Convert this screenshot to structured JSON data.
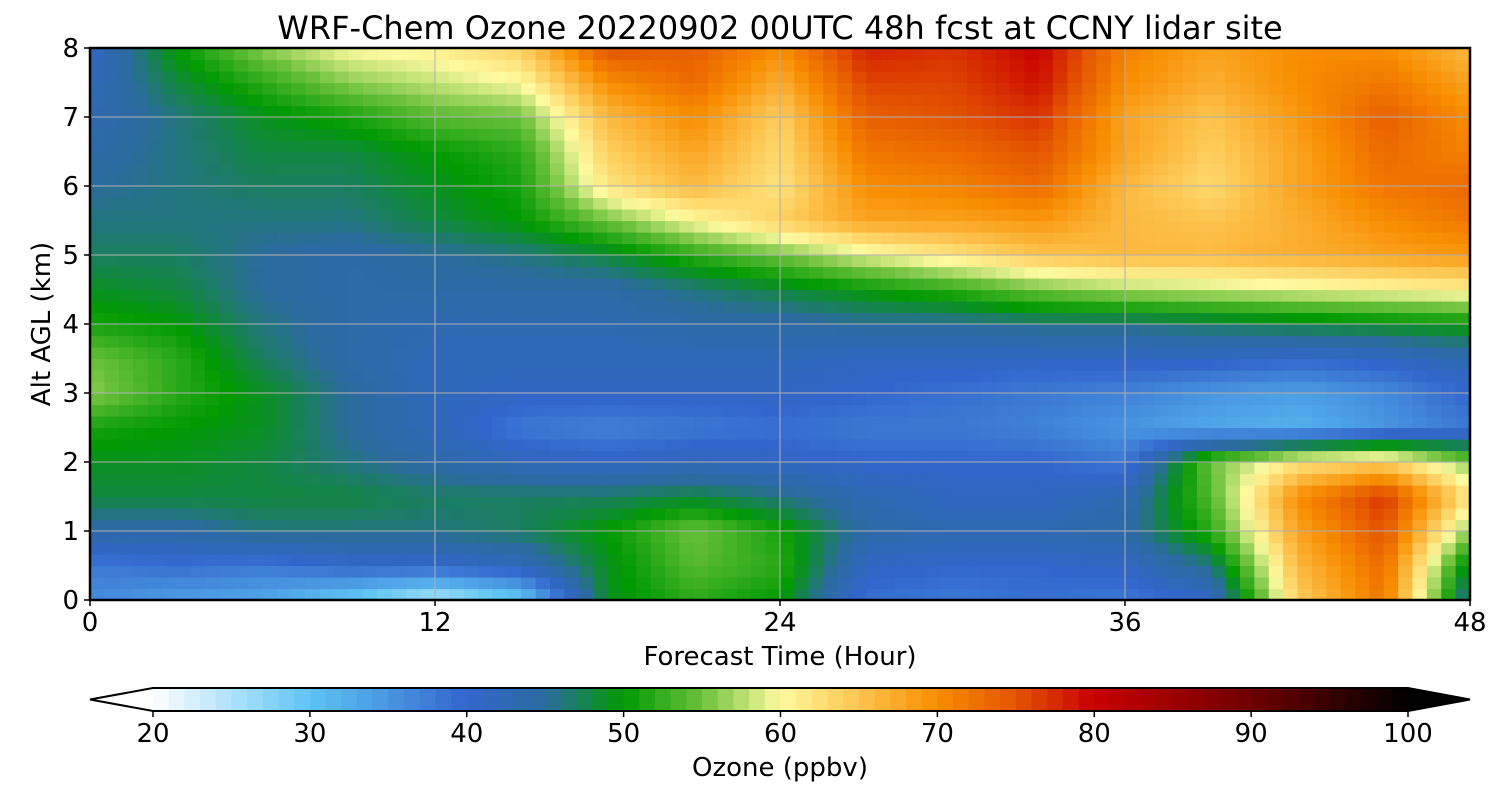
{
  "chart_data": {
    "type": "heatmap",
    "title": "WRF-Chem Ozone  20220902 00UTC 48h fcst at CCNY lidar site",
    "xlabel": "Forecast Time (Hour)",
    "ylabel": "Alt AGL (km)",
    "xlim": [
      0,
      48
    ],
    "ylim": [
      0,
      8
    ],
    "xticks": [
      0,
      12,
      24,
      36,
      48
    ],
    "yticks": [
      0,
      1,
      2,
      3,
      4,
      5,
      6,
      7,
      8
    ],
    "grid": true,
    "x": [
      0,
      3,
      6,
      9,
      12,
      15,
      18,
      21,
      24,
      27,
      30,
      33,
      36,
      39,
      42,
      45,
      48
    ],
    "y": [
      0,
      0.5,
      1,
      1.5,
      2,
      2.5,
      3,
      3.5,
      4,
      4.5,
      5,
      5.5,
      6,
      6.5,
      7,
      7.5,
      8
    ],
    "z_units": "ppbv",
    "z": [
      [
        36,
        34,
        33,
        29,
        24,
        29,
        49,
        52,
        50,
        39,
        38,
        39,
        38,
        41,
        64,
        72,
        44
      ],
      [
        38,
        39,
        38,
        40,
        40,
        42,
        49,
        54,
        52,
        41,
        40,
        40,
        41,
        46,
        66,
        73,
        48
      ],
      [
        44,
        44,
        46,
        46,
        46,
        47,
        50,
        55,
        51,
        44,
        43,
        43,
        44,
        52,
        68,
        75,
        56
      ],
      [
        48,
        48,
        48,
        48,
        47,
        47,
        47,
        48,
        46,
        43,
        41,
        41,
        43,
        54,
        70,
        77,
        62
      ],
      [
        49,
        49,
        48,
        46,
        44,
        42,
        41,
        42,
        41,
        40,
        40,
        40,
        38,
        55,
        62,
        64,
        56
      ],
      [
        51,
        50,
        49,
        45,
        42,
        38,
        37,
        38,
        39,
        38,
        38,
        37,
        35,
        33,
        32,
        35,
        38
      ],
      [
        56,
        52,
        49,
        45,
        42,
        41,
        41,
        41,
        41,
        40,
        39,
        38,
        37,
        35,
        34,
        36,
        40
      ],
      [
        55,
        52,
        47,
        44,
        42,
        42,
        42,
        42,
        42,
        41,
        41,
        41,
        41,
        41,
        40,
        41,
        43
      ],
      [
        51,
        50,
        46,
        44,
        43,
        43,
        43,
        44,
        44,
        45,
        45,
        46,
        46,
        47,
        48,
        49,
        50
      ],
      [
        49,
        48,
        45,
        44,
        44,
        44,
        44,
        46,
        48,
        50,
        52,
        55,
        57,
        58,
        59,
        60,
        61
      ],
      [
        47,
        47,
        45,
        44,
        45,
        46,
        48,
        52,
        55,
        59,
        62,
        65,
        66,
        66,
        67,
        68,
        69
      ],
      [
        46,
        46,
        46,
        46,
        48,
        50,
        55,
        60,
        64,
        68,
        68,
        69,
        66,
        65,
        67,
        70,
        72
      ],
      [
        45,
        46,
        47,
        47,
        49,
        51,
        62,
        66,
        62,
        70,
        71,
        73,
        66,
        63,
        68,
        72,
        73
      ],
      [
        44,
        46,
        48,
        48,
        50,
        52,
        64,
        68,
        63,
        72,
        73,
        75,
        68,
        64,
        68,
        73,
        71
      ],
      [
        43,
        46,
        49,
        51,
        54,
        55,
        66,
        70,
        64,
        74,
        75,
        77,
        68,
        65,
        69,
        74,
        70
      ],
      [
        42,
        48,
        52,
        56,
        58,
        60,
        70,
        73,
        67,
        76,
        76,
        79,
        70,
        67,
        70,
        72,
        68
      ],
      [
        41,
        50,
        56,
        60,
        61,
        64,
        75,
        74,
        70,
        78,
        77,
        80,
        71,
        68,
        70,
        70,
        66
      ]
    ],
    "colorbar": {
      "label": "Ozone  (ppbv)",
      "min": 20,
      "max": 100,
      "ticks": [
        20,
        30,
        40,
        50,
        60,
        70,
        80,
        90,
        100
      ],
      "extend": "both",
      "color_stops": [
        {
          "value": 20,
          "color": "#ffffff"
        },
        {
          "value": 30,
          "color": "#5ec4f5"
        },
        {
          "value": 40,
          "color": "#3366cc"
        },
        {
          "value": 45,
          "color": "#2b6b9e"
        },
        {
          "value": 50,
          "color": "#019a01"
        },
        {
          "value": 55,
          "color": "#6cc13c"
        },
        {
          "value": 60,
          "color": "#fffaa0"
        },
        {
          "value": 65,
          "color": "#fdc44f"
        },
        {
          "value": 70,
          "color": "#f88d00"
        },
        {
          "value": 75,
          "color": "#e45400"
        },
        {
          "value": 80,
          "color": "#c80000"
        },
        {
          "value": 90,
          "color": "#6e0000"
        },
        {
          "value": 100,
          "color": "#000000"
        }
      ]
    }
  }
}
